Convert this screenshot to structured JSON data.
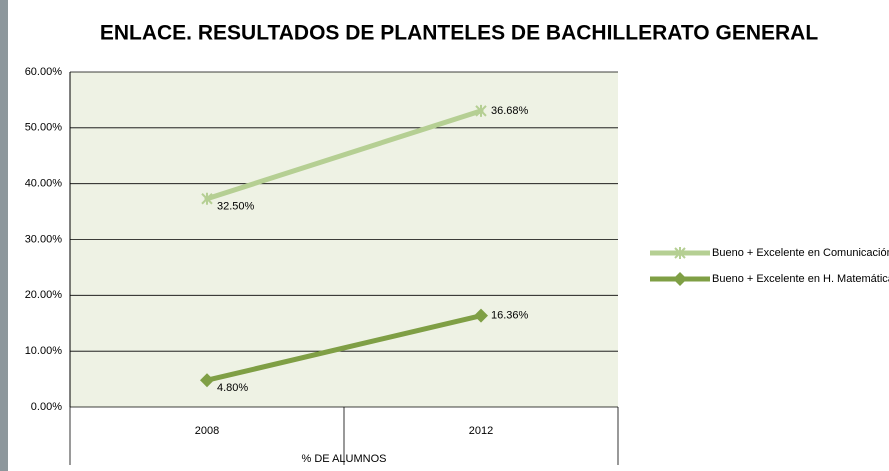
{
  "chart_data": {
    "type": "line",
    "stacked": true,
    "title": "ENLACE. RESULTADOS DE PLANTELES DE BACHILLERATO GENERAL",
    "x_label": "% DE ALUMNOS",
    "categories": [
      "2008",
      "2012"
    ],
    "series": [
      {
        "name": "Bueno + Excelente en H. Matemática",
        "color": "#7f9f45",
        "marker": "diamond",
        "values": [
          4.8,
          16.36
        ],
        "value_labels": [
          "4.80%",
          "16.36%"
        ]
      },
      {
        "name": "Bueno + Excelente en Comunicación",
        "color": "#b5cf93",
        "marker": "star",
        "values": [
          32.5,
          36.68
        ],
        "value_labels": [
          "32.50%",
          "36.68%"
        ]
      }
    ],
    "ylim": [
      0,
      60
    ],
    "yticks": [
      {
        "value": 0,
        "label": "0.00%"
      },
      {
        "value": 10,
        "label": "10.00%"
      },
      {
        "value": 20,
        "label": "20.00%"
      },
      {
        "value": 30,
        "label": "30.00%"
      },
      {
        "value": 40,
        "label": "40.00%"
      },
      {
        "value": 50,
        "label": "50.00%"
      },
      {
        "value": 60,
        "label": "60.00%"
      }
    ],
    "grid": true,
    "legend": "right"
  }
}
